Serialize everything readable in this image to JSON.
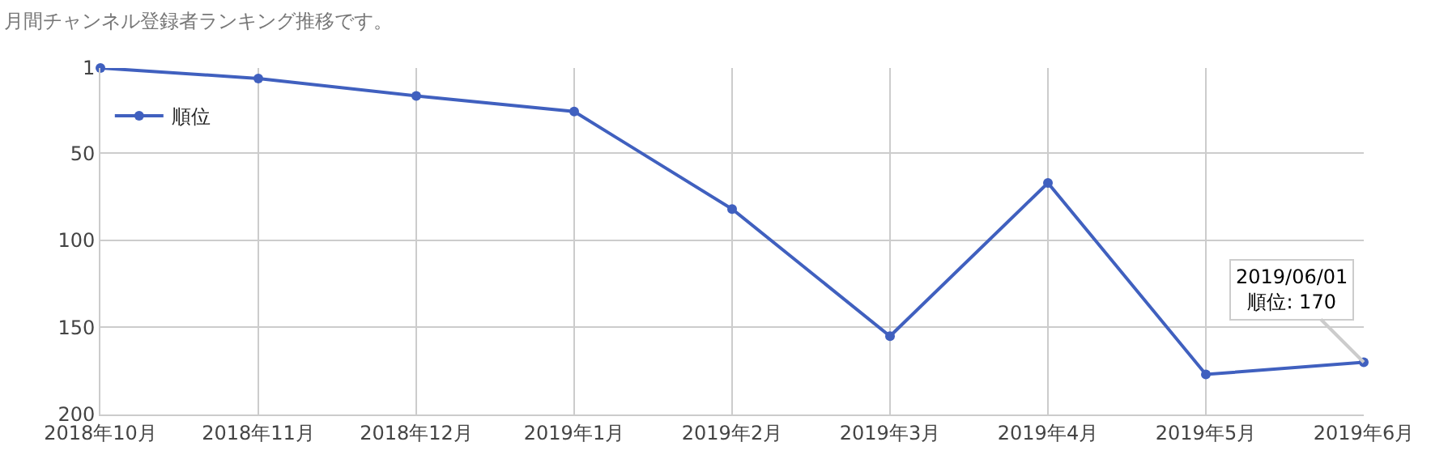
{
  "chart_data": {
    "type": "line",
    "title": "月間チャンネル登録者ランキング推移です。",
    "categories": [
      "2018年10月",
      "2018年11月",
      "2018年12月",
      "2019年1月",
      "2019年2月",
      "2019年3月",
      "2019年4月",
      "2019年5月",
      "2019年6月"
    ],
    "series": [
      {
        "name": "順位",
        "color": "#4060bf",
        "values": [
          1,
          7,
          17,
          26,
          82,
          155,
          67,
          177,
          170
        ]
      }
    ],
    "ylim": [
      200,
      1
    ],
    "yticks": [
      1,
      50,
      100,
      150,
      200
    ],
    "annotations": [
      {
        "text": "2019/06/01\n順位: 170",
        "x": "2019年6月",
        "y": 170
      }
    ],
    "grid": true,
    "legend": "top left",
    "marker": "circle",
    "line_style": "solid"
  }
}
